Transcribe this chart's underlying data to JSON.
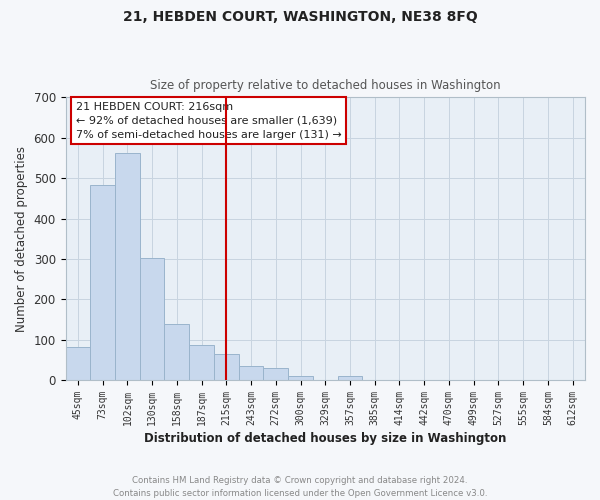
{
  "title": "21, HEBDEN COURT, WASHINGTON, NE38 8FQ",
  "subtitle": "Size of property relative to detached houses in Washington",
  "xlabel": "Distribution of detached houses by size in Washington",
  "ylabel": "Number of detached properties",
  "bar_labels": [
    "45sqm",
    "73sqm",
    "102sqm",
    "130sqm",
    "158sqm",
    "187sqm",
    "215sqm",
    "243sqm",
    "272sqm",
    "300sqm",
    "329sqm",
    "357sqm",
    "385sqm",
    "414sqm",
    "442sqm",
    "470sqm",
    "499sqm",
    "527sqm",
    "555sqm",
    "584sqm",
    "612sqm"
  ],
  "bar_values": [
    82,
    484,
    563,
    302,
    140,
    87,
    65,
    36,
    31,
    10,
    0,
    11,
    0,
    0,
    0,
    0,
    0,
    0,
    0,
    0,
    0
  ],
  "bar_color": "#c8d8ed",
  "bar_edge_color": "#9ab4cc",
  "vline_color": "#cc0000",
  "ylim": [
    0,
    700
  ],
  "yticks": [
    0,
    100,
    200,
    300,
    400,
    500,
    600,
    700
  ],
  "annotation_title": "21 HEBDEN COURT: 216sqm",
  "annotation_line1": "← 92% of detached houses are smaller (1,639)",
  "annotation_line2": "7% of semi-detached houses are larger (131) →",
  "annotation_box_color": "#ffffff",
  "annotation_box_edge": "#cc0000",
  "footer_line1": "Contains HM Land Registry data © Crown copyright and database right 2024.",
  "footer_line2": "Contains public sector information licensed under the Open Government Licence v3.0.",
  "grid_color": "#c8d4e0",
  "background_color": "#e8eff6",
  "fig_background": "#f5f7fa"
}
